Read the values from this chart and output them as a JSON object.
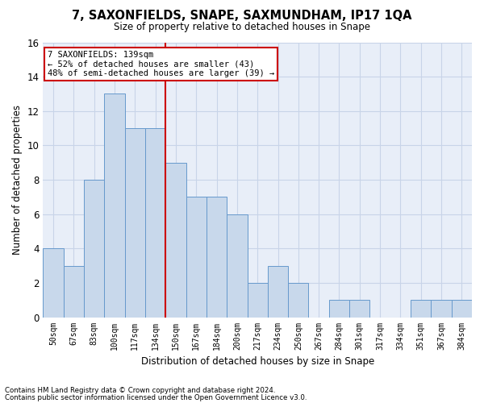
{
  "title": "7, SAXONFIELDS, SNAPE, SAXMUNDHAM, IP17 1QA",
  "subtitle": "Size of property relative to detached houses in Snape",
  "xlabel": "Distribution of detached houses by size in Snape",
  "ylabel": "Number of detached properties",
  "bar_labels": [
    "50sqm",
    "67sqm",
    "83sqm",
    "100sqm",
    "117sqm",
    "134sqm",
    "150sqm",
    "167sqm",
    "184sqm",
    "200sqm",
    "217sqm",
    "234sqm",
    "250sqm",
    "267sqm",
    "284sqm",
    "301sqm",
    "317sqm",
    "334sqm",
    "351sqm",
    "367sqm",
    "384sqm"
  ],
  "bar_values": [
    4,
    3,
    8,
    13,
    11,
    11,
    9,
    7,
    7,
    6,
    2,
    3,
    2,
    0,
    1,
    1,
    0,
    0,
    1,
    1,
    1
  ],
  "bar_color": "#c8d8eb",
  "bar_edgecolor": "#6699cc",
  "vline_position": 5.5,
  "annotation_title": "7 SAXONFIELDS: 139sqm",
  "annotation_line1": "← 52% of detached houses are smaller (43)",
  "annotation_line2": "48% of semi-detached houses are larger (39) →",
  "annotation_box_color": "#ffffff",
  "annotation_box_edgecolor": "#cc0000",
  "vline_color": "#cc0000",
  "ylim": [
    0,
    16
  ],
  "yticks": [
    0,
    2,
    4,
    6,
    8,
    10,
    12,
    14,
    16
  ],
  "grid_color": "#c8d4e8",
  "bg_color": "#e8eef8",
  "fig_bg_color": "#ffffff",
  "footnote1": "Contains HM Land Registry data © Crown copyright and database right 2024.",
  "footnote2": "Contains public sector information licensed under the Open Government Licence v3.0."
}
